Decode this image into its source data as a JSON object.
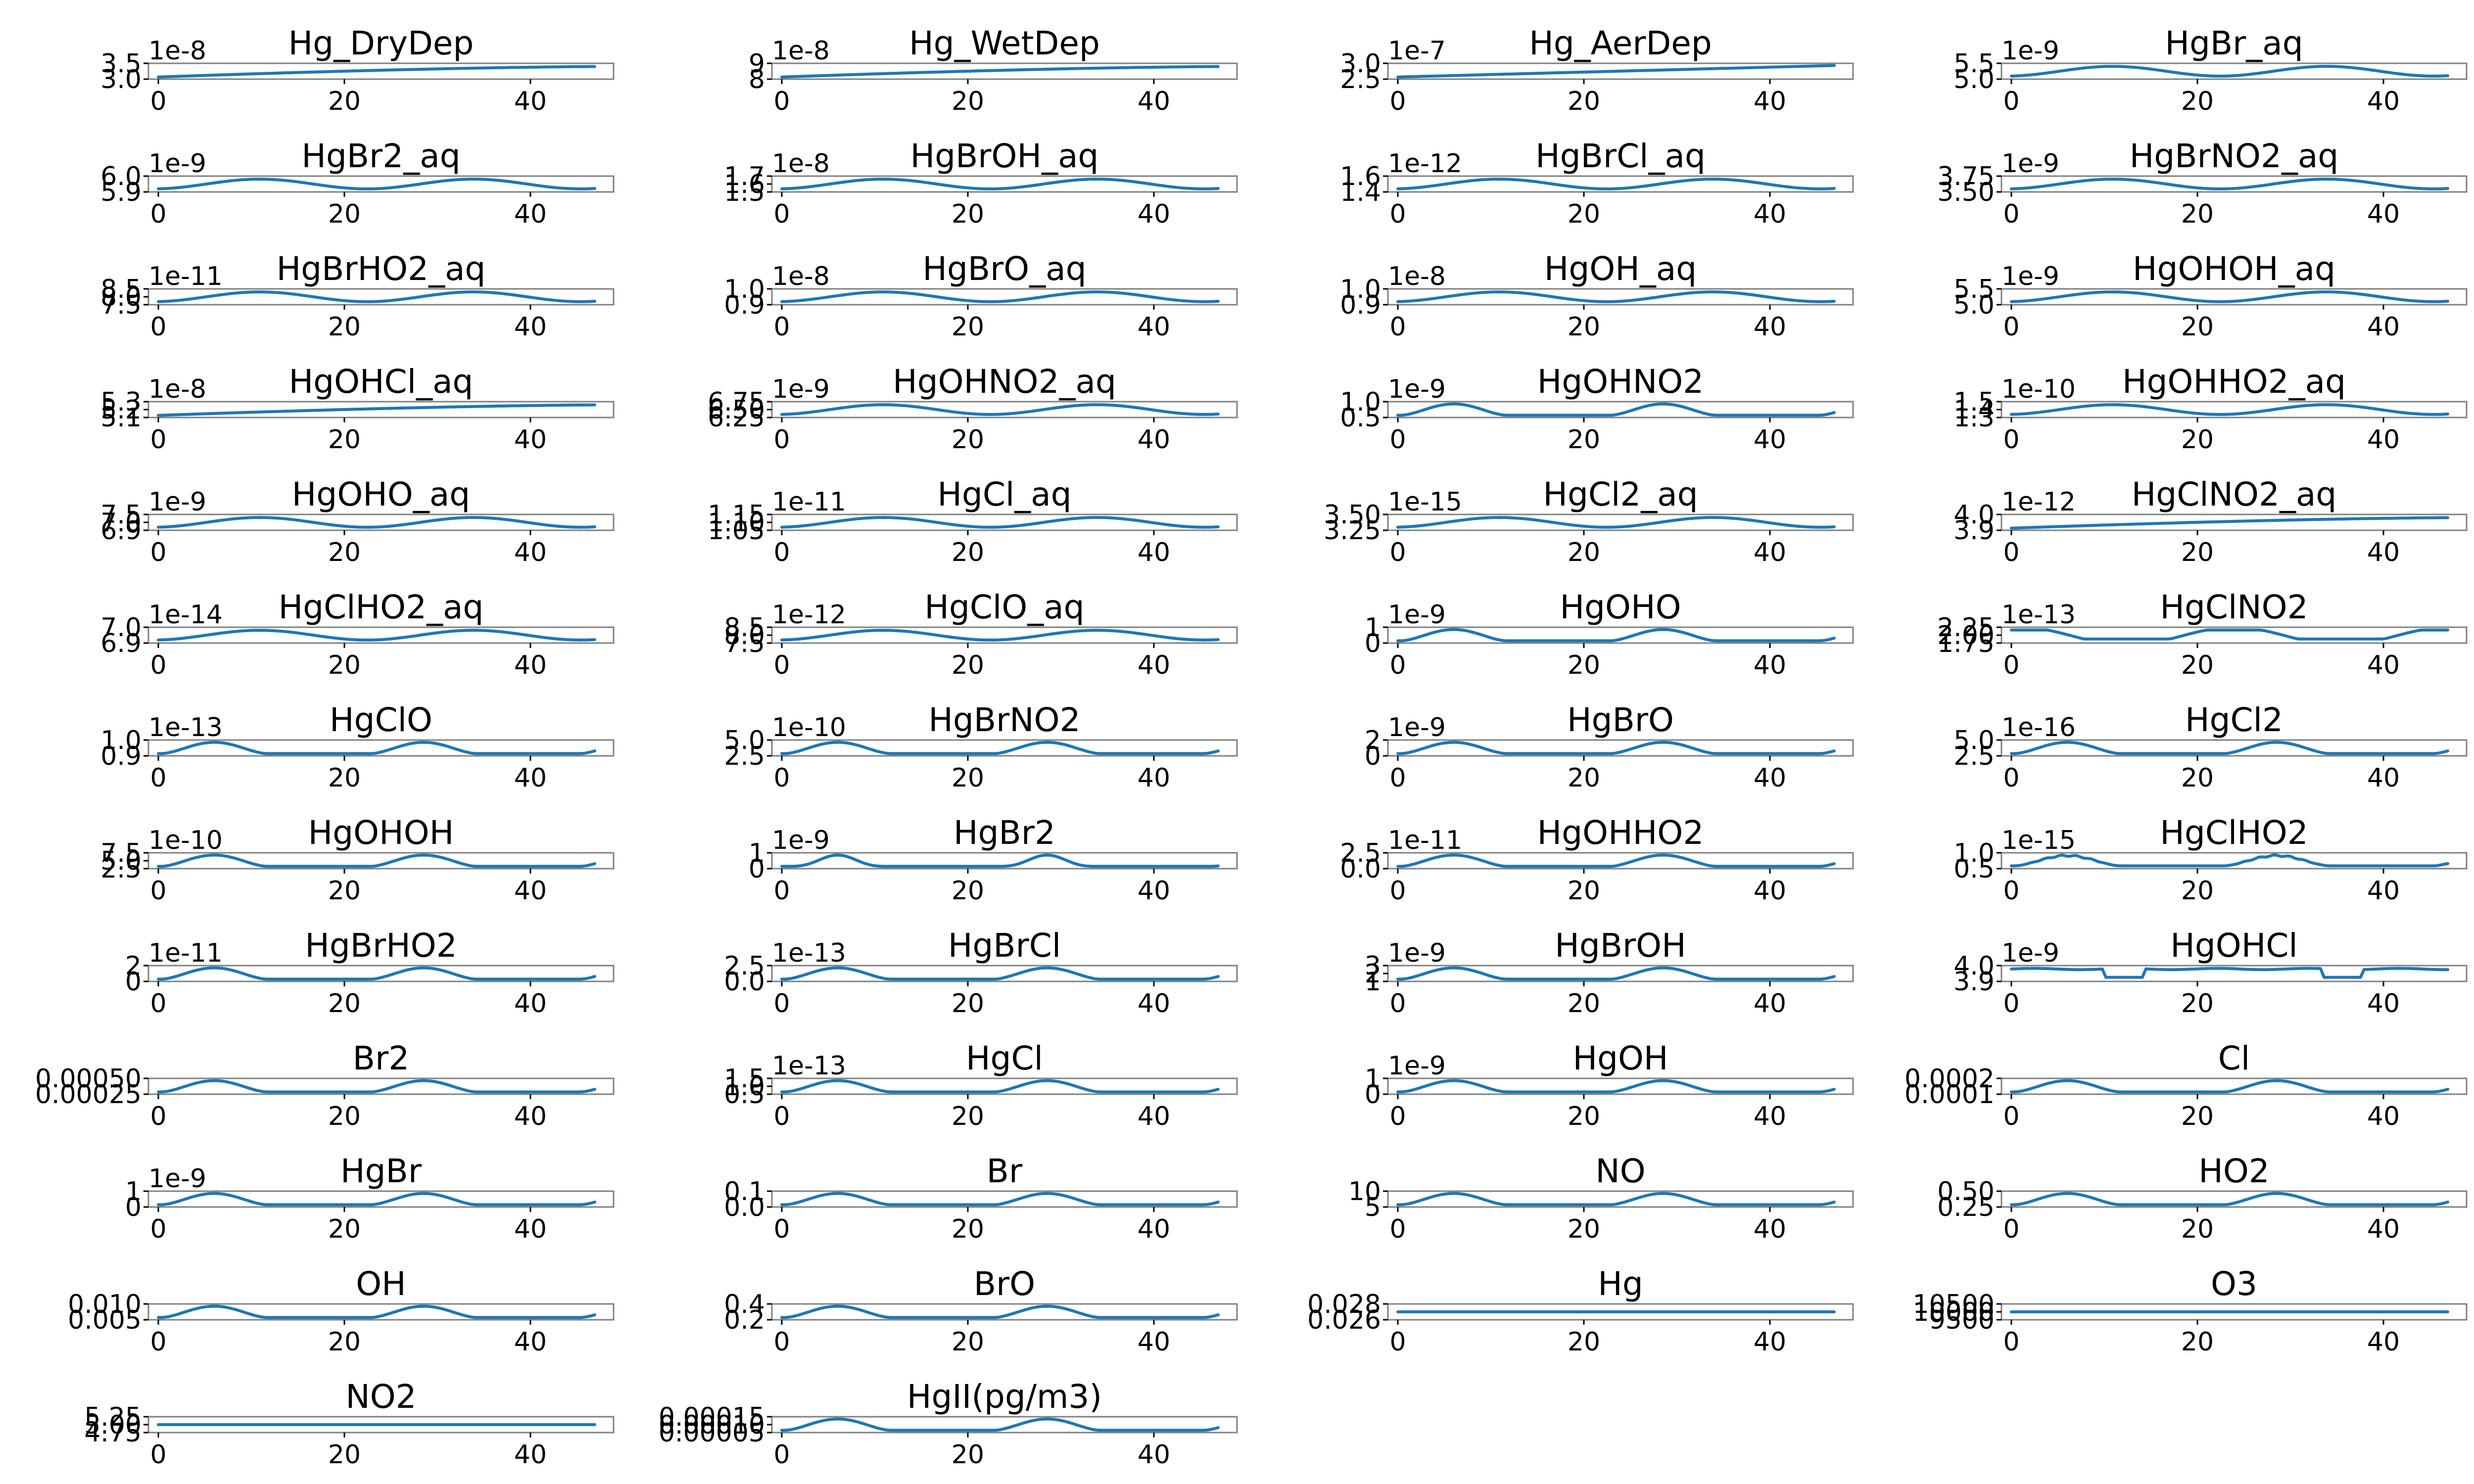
{
  "figure": {
    "rows": 13,
    "cols": 4
  },
  "style": {
    "line_color": "#1f77b4",
    "frame_color": "#808080",
    "background": "#ffffff"
  },
  "chart_data": [
    {
      "type": "line",
      "title": "Hg_DryDep",
      "xticks": [
        "0",
        "20",
        "40"
      ],
      "yticks": [
        "3.0",
        "3.5"
      ],
      "offset": "1e-8",
      "shape": "rise"
    },
    {
      "type": "line",
      "title": "Hg_WetDep",
      "xticks": [
        "0",
        "20",
        "40"
      ],
      "yticks": [
        "8",
        "9"
      ],
      "offset": "1e-8",
      "shape": "rise"
    },
    {
      "type": "line",
      "title": "Hg_AerDep",
      "xticks": [
        "0",
        "20",
        "40"
      ],
      "yticks": [
        "2.5",
        "3.0"
      ],
      "offset": "1e-7",
      "shape": "linear"
    },
    {
      "type": "line",
      "title": "HgBr_aq",
      "xticks": [
        "0",
        "20",
        "40"
      ],
      "yticks": [
        "5.0",
        "5.5"
      ],
      "offset": "1e-9",
      "shape": "wave"
    },
    {
      "type": "line",
      "title": "HgBr2_aq",
      "xticks": [
        "0",
        "20",
        "40"
      ],
      "yticks": [
        "5.9",
        "6.0"
      ],
      "offset": "1e-9",
      "shape": "wave"
    },
    {
      "type": "line",
      "title": "HgBrOH_aq",
      "xticks": [
        "0",
        "20",
        "40"
      ],
      "yticks": [
        "1.5",
        "1.6",
        "1.7"
      ],
      "offset": "1e-8",
      "shape": "wave"
    },
    {
      "type": "line",
      "title": "HgBrCl_aq",
      "xticks": [
        "0",
        "20",
        "40"
      ],
      "yticks": [
        "1.4",
        "1.6"
      ],
      "offset": "1e-12",
      "shape": "wave"
    },
    {
      "type": "line",
      "title": "HgBrNO2_aq",
      "xticks": [
        "0",
        "20",
        "40"
      ],
      "yticks": [
        "3.50",
        "3.75"
      ],
      "offset": "1e-9",
      "shape": "wave"
    },
    {
      "type": "line",
      "title": "HgBrHO2_aq",
      "xticks": [
        "0",
        "20",
        "40"
      ],
      "yticks": [
        "7.5",
        "8.0",
        "8.5"
      ],
      "offset": "1e-11",
      "shape": "wave"
    },
    {
      "type": "line",
      "title": "HgBrO_aq",
      "xticks": [
        "0",
        "20",
        "40"
      ],
      "yticks": [
        "0.9",
        "1.0"
      ],
      "offset": "1e-8",
      "shape": "wave"
    },
    {
      "type": "line",
      "title": "HgOH_aq",
      "xticks": [
        "0",
        "20",
        "40"
      ],
      "yticks": [
        "0.9",
        "1.0"
      ],
      "offset": "1e-8",
      "shape": "wave"
    },
    {
      "type": "line",
      "title": "HgOHOH_aq",
      "xticks": [
        "0",
        "20",
        "40"
      ],
      "yticks": [
        "5.0",
        "5.5"
      ],
      "offset": "1e-9",
      "shape": "wave"
    },
    {
      "type": "line",
      "title": "HgOHCl_aq",
      "xticks": [
        "0",
        "20",
        "40"
      ],
      "yticks": [
        "5.1",
        "5.2",
        "5.3"
      ],
      "offset": "1e-8",
      "shape": "rise"
    },
    {
      "type": "line",
      "title": "HgOHNO2_aq",
      "xticks": [
        "0",
        "20",
        "40"
      ],
      "yticks": [
        "6.25",
        "6.50",
        "6.75"
      ],
      "offset": "1e-9",
      "shape": "wave"
    },
    {
      "type": "line",
      "title": "HgOHNO2",
      "xticks": [
        "0",
        "20",
        "40"
      ],
      "yticks": [
        "0.5",
        "1.0"
      ],
      "offset": "1e-9",
      "shape": "bump"
    },
    {
      "type": "line",
      "title": "HgOHHO2_aq",
      "xticks": [
        "0",
        "20",
        "40"
      ],
      "yticks": [
        "1.3",
        "1.4",
        "1.5"
      ],
      "offset": "1e-10",
      "shape": "wave"
    },
    {
      "type": "line",
      "title": "HgOHO_aq",
      "xticks": [
        "0",
        "20",
        "40"
      ],
      "yticks": [
        "6.9",
        "7.0",
        "7.5"
      ],
      "offset": "1e-9",
      "shape": "wave"
    },
    {
      "type": "line",
      "title": "HgCl_aq",
      "xticks": [
        "0",
        "20",
        "40"
      ],
      "yticks": [
        "1.05",
        "1.10",
        "1.15"
      ],
      "offset": "1e-11",
      "shape": "wave"
    },
    {
      "type": "line",
      "title": "HgCl2_aq",
      "xticks": [
        "0",
        "20",
        "40"
      ],
      "yticks": [
        "3.25",
        "3.50"
      ],
      "offset": "1e-15",
      "shape": "wave"
    },
    {
      "type": "line",
      "title": "HgClNO2_aq",
      "xticks": [
        "0",
        "20",
        "40"
      ],
      "yticks": [
        "3.9",
        "4.0"
      ],
      "offset": "1e-12",
      "shape": "rise"
    },
    {
      "type": "line",
      "title": "HgClHO2_aq",
      "xticks": [
        "0",
        "20",
        "40"
      ],
      "yticks": [
        "6.9",
        "7.0"
      ],
      "offset": "1e-14",
      "shape": "wave"
    },
    {
      "type": "line",
      "title": "HgClO_aq",
      "xticks": [
        "0",
        "20",
        "40"
      ],
      "yticks": [
        "7.5",
        "8.0",
        "8.5"
      ],
      "offset": "1e-12",
      "shape": "wave"
    },
    {
      "type": "line",
      "title": "HgOHO",
      "xticks": [
        "0",
        "20",
        "40"
      ],
      "yticks": [
        "0",
        "1"
      ],
      "offset": "1e-9",
      "shape": "bump"
    },
    {
      "type": "line",
      "title": "HgClNO2",
      "xticks": [
        "0",
        "20",
        "40"
      ],
      "yticks": [
        "1.75",
        "2.00",
        "2.25"
      ],
      "offset": "1e-13",
      "shape": "dip"
    },
    {
      "type": "line",
      "title": "HgClO",
      "xticks": [
        "0",
        "20",
        "40"
      ],
      "yticks": [
        "0.9",
        "1.0"
      ],
      "offset": "1e-13",
      "shape": "bump"
    },
    {
      "type": "line",
      "title": "HgBrNO2",
      "xticks": [
        "0",
        "20",
        "40"
      ],
      "yticks": [
        "2.5",
        "5.0"
      ],
      "offset": "1e-10",
      "shape": "bump"
    },
    {
      "type": "line",
      "title": "HgBrO",
      "xticks": [
        "0",
        "20",
        "40"
      ],
      "yticks": [
        "0",
        "2"
      ],
      "offset": "1e-9",
      "shape": "bump"
    },
    {
      "type": "line",
      "title": "HgCl2",
      "xticks": [
        "0",
        "20",
        "40"
      ],
      "yticks": [
        "2.5",
        "5.0"
      ],
      "offset": "1e-16",
      "shape": "bump"
    },
    {
      "type": "line",
      "title": "HgOHOH",
      "xticks": [
        "0",
        "20",
        "40"
      ],
      "yticks": [
        "2.5",
        "5.0",
        "7.5"
      ],
      "offset": "1e-10",
      "shape": "bump"
    },
    {
      "type": "line",
      "title": "HgBr2",
      "xticks": [
        "0",
        "20",
        "40"
      ],
      "yticks": [
        "0",
        "1"
      ],
      "offset": "1e-9",
      "shape": "peak"
    },
    {
      "type": "line",
      "title": "HgOHHO2",
      "xticks": [
        "0",
        "20",
        "40"
      ],
      "yticks": [
        "0.0",
        "2.5"
      ],
      "offset": "1e-11",
      "shape": "bump"
    },
    {
      "type": "line",
      "title": "HgClHO2",
      "xticks": [
        "0",
        "20",
        "40"
      ],
      "yticks": [
        "0.5",
        "1.0"
      ],
      "offset": "1e-15",
      "shape": "jagged"
    },
    {
      "type": "line",
      "title": "HgBrHO2",
      "xticks": [
        "0",
        "20",
        "40"
      ],
      "yticks": [
        "0",
        "2"
      ],
      "offset": "1e-11",
      "shape": "bump"
    },
    {
      "type": "line",
      "title": "HgBrCl",
      "xticks": [
        "0",
        "20",
        "40"
      ],
      "yticks": [
        "0.0",
        "2.5"
      ],
      "offset": "1e-13",
      "shape": "bump"
    },
    {
      "type": "line",
      "title": "HgBrOH",
      "xticks": [
        "0",
        "20",
        "40"
      ],
      "yticks": [
        "1",
        "2",
        "3"
      ],
      "offset": "1e-9",
      "shape": "bump"
    },
    {
      "type": "line",
      "title": "HgOHCl",
      "xticks": [
        "0",
        "20",
        "40"
      ],
      "yticks": [
        "3.9",
        "4.0"
      ],
      "offset": "1e-9",
      "shape": "plateau"
    },
    {
      "type": "line",
      "title": "Br2",
      "xticks": [
        "0",
        "20",
        "40"
      ],
      "yticks": [
        "0.00025",
        "0.00050"
      ],
      "offset": "",
      "shape": "bump"
    },
    {
      "type": "line",
      "title": "HgCl",
      "xticks": [
        "0",
        "20",
        "40"
      ],
      "yticks": [
        "0.5",
        "1.0",
        "1.5"
      ],
      "offset": "1e-13",
      "shape": "bump"
    },
    {
      "type": "line",
      "title": "HgOH",
      "xticks": [
        "0",
        "20",
        "40"
      ],
      "yticks": [
        "0",
        "1"
      ],
      "offset": "1e-9",
      "shape": "bump"
    },
    {
      "type": "line",
      "title": "Cl",
      "xticks": [
        "0",
        "20",
        "40"
      ],
      "yticks": [
        "0.0001",
        "0.0002"
      ],
      "offset": "",
      "shape": "bump"
    },
    {
      "type": "line",
      "title": "HgBr",
      "xticks": [
        "0",
        "20",
        "40"
      ],
      "yticks": [
        "0",
        "1"
      ],
      "offset": "1e-9",
      "shape": "bump"
    },
    {
      "type": "line",
      "title": "Br",
      "xticks": [
        "0",
        "20",
        "40"
      ],
      "yticks": [
        "0.0",
        "0.1"
      ],
      "offset": "",
      "shape": "bump"
    },
    {
      "type": "line",
      "title": "NO",
      "xticks": [
        "0",
        "20",
        "40"
      ],
      "yticks": [
        "5",
        "10"
      ],
      "offset": "",
      "shape": "bump"
    },
    {
      "type": "line",
      "title": "HO2",
      "xticks": [
        "0",
        "20",
        "40"
      ],
      "yticks": [
        "0.25",
        "0.50"
      ],
      "offset": "",
      "shape": "bump"
    },
    {
      "type": "line",
      "title": "OH",
      "xticks": [
        "0",
        "20",
        "40"
      ],
      "yticks": [
        "0.005",
        "0.010"
      ],
      "offset": "",
      "shape": "bump"
    },
    {
      "type": "line",
      "title": "BrO",
      "xticks": [
        "0",
        "20",
        "40"
      ],
      "yticks": [
        "0.2",
        "0.4"
      ],
      "offset": "",
      "shape": "bump"
    },
    {
      "type": "line",
      "title": "Hg",
      "xticks": [
        "0",
        "20",
        "40"
      ],
      "yticks": [
        "0.026",
        "0.028"
      ],
      "offset": "",
      "shape": "flat"
    },
    {
      "type": "line",
      "title": "O3",
      "xticks": [
        "0",
        "20",
        "40"
      ],
      "yticks": [
        "9500",
        "10000",
        "10500"
      ],
      "offset": "",
      "shape": "flat"
    },
    {
      "type": "line",
      "title": "NO2",
      "xticks": [
        "0",
        "20",
        "40"
      ],
      "yticks": [
        "4.75",
        "5.00",
        "5.25"
      ],
      "offset": "",
      "shape": "flat"
    },
    {
      "type": "line",
      "title": "HgII(pg/m3)",
      "xticks": [
        "0",
        "20",
        "40"
      ],
      "yticks": [
        "0.00005",
        "0.00010",
        "0.00015"
      ],
      "offset": "",
      "shape": "bump"
    }
  ]
}
